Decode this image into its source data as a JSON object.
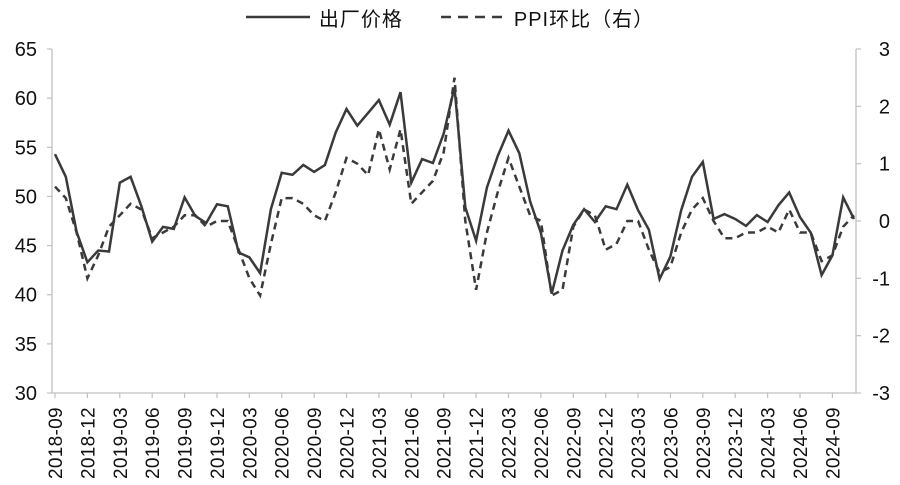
{
  "legend": [
    {
      "key": "factory-price",
      "label": "出厂价格",
      "line": "solid"
    },
    {
      "key": "ppi-mom",
      "label": "PPI环比（右）",
      "line": "dashed"
    }
  ],
  "chart_data": {
    "type": "line",
    "title": "",
    "x_label": "",
    "x": [
      "2018-09",
      "2018-10",
      "2018-11",
      "2018-12",
      "2019-01",
      "2019-02",
      "2019-03",
      "2019-04",
      "2019-05",
      "2019-06",
      "2019-07",
      "2019-08",
      "2019-09",
      "2019-10",
      "2019-11",
      "2019-12",
      "2020-01",
      "2020-02",
      "2020-03",
      "2020-04",
      "2020-05",
      "2020-06",
      "2020-07",
      "2020-08",
      "2020-09",
      "2020-10",
      "2020-11",
      "2020-12",
      "2021-01",
      "2021-02",
      "2021-03",
      "2021-04",
      "2021-05",
      "2021-06",
      "2021-07",
      "2021-08",
      "2021-09",
      "2021-10",
      "2021-11",
      "2021-12",
      "2022-01",
      "2022-02",
      "2022-03",
      "2022-04",
      "2022-05",
      "2022-06",
      "2022-07",
      "2022-08",
      "2022-09",
      "2022-10",
      "2022-11",
      "2022-12",
      "2023-01",
      "2023-02",
      "2023-03",
      "2023-04",
      "2023-05",
      "2023-06",
      "2023-07",
      "2023-08",
      "2023-09",
      "2023-10",
      "2023-11",
      "2023-12",
      "2024-01",
      "2024-02",
      "2024-03",
      "2024-04",
      "2024-05",
      "2024-06",
      "2024-07",
      "2024-08",
      "2024-09",
      "2024-10",
      "2024-11"
    ],
    "x_tick_every": 3,
    "x_tick_labels": [
      "2018-09",
      "2018-12",
      "2019-03",
      "2019-06",
      "2019-09",
      "2019-12",
      "2020-03",
      "2020-06",
      "2020-09",
      "2020-12",
      "2021-03",
      "2021-06",
      "2021-09",
      "2021-12",
      "2022-03",
      "2022-06",
      "2022-09",
      "2022-12",
      "2023-03",
      "2023-06",
      "2023-09",
      "2023-12",
      "2024-03",
      "2024-06",
      "2024-09"
    ],
    "left_axis": {
      "min": 30,
      "max": 65,
      "ticks": [
        65,
        60,
        55,
        50,
        45,
        40,
        35,
        30
      ]
    },
    "right_axis": {
      "min": -3,
      "max": 3,
      "ticks": [
        3,
        2,
        1,
        0,
        -1,
        -2,
        -3
      ]
    },
    "grid": false,
    "legend_position": "top-center",
    "series": [
      {
        "key": "factory-price",
        "name": "出厂价格",
        "axis": "left",
        "line": "solid",
        "values": [
          54.3,
          52.0,
          46.4,
          43.3,
          44.5,
          44.4,
          51.4,
          52.0,
          49.0,
          45.4,
          46.9,
          46.7,
          49.9,
          48.0,
          47.3,
          49.2,
          49.0,
          44.3,
          43.8,
          42.2,
          48.7,
          52.4,
          52.2,
          53.2,
          52.5,
          53.2,
          56.5,
          58.9,
          57.2,
          58.5,
          59.8,
          57.3,
          60.6,
          51.4,
          53.8,
          53.4,
          56.4,
          61.1,
          48.9,
          45.5,
          50.9,
          54.1,
          56.7,
          54.4,
          49.5,
          46.3,
          40.1,
          44.5,
          47.1,
          48.7,
          47.4,
          49.0,
          48.7,
          51.2,
          48.6,
          46.6,
          41.6,
          43.9,
          48.6,
          52.0,
          53.5,
          47.7,
          48.2,
          47.7,
          47.0,
          48.1,
          47.4,
          49.1,
          50.4,
          47.9,
          46.3,
          42.0,
          44.0,
          49.9,
          47.7
        ]
      },
      {
        "key": "ppi-mom",
        "name": "PPI环比（右）",
        "axis": "right",
        "line": "dashed",
        "values": [
          0.6,
          0.4,
          -0.2,
          -1.0,
          -0.6,
          -0.1,
          0.1,
          0.3,
          0.2,
          -0.3,
          -0.2,
          -0.1,
          0.1,
          0.1,
          -0.1,
          0.0,
          0.0,
          -0.5,
          -1.0,
          -1.3,
          -0.4,
          0.4,
          0.4,
          0.3,
          0.1,
          0.0,
          0.5,
          1.1,
          1.0,
          0.8,
          1.6,
          0.9,
          1.6,
          0.3,
          0.5,
          0.7,
          1.2,
          2.5,
          0.0,
          -1.2,
          -0.2,
          0.5,
          1.1,
          0.6,
          0.1,
          0.0,
          -1.3,
          -1.2,
          -0.1,
          0.2,
          0.1,
          -0.5,
          -0.4,
          0.0,
          0.0,
          -0.5,
          -0.9,
          -0.8,
          -0.2,
          0.2,
          0.4,
          0.0,
          -0.3,
          -0.3,
          -0.2,
          -0.2,
          -0.1,
          -0.2,
          0.2,
          -0.2,
          -0.2,
          -0.7,
          -0.6,
          -0.1,
          0.1
        ]
      }
    ],
    "colors": {
      "line": "#3a3a3a",
      "axis": "#c0c0c0",
      "text": "#111111",
      "background": "#ffffff"
    }
  }
}
